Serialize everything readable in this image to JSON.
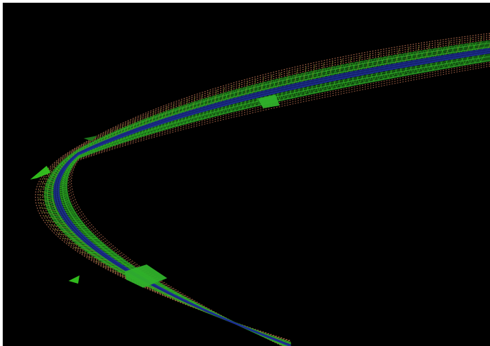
{
  "scene": {
    "background_color": "#000000",
    "frame_color": "#ffffff",
    "subject": "3d-wireframe-road-mesh",
    "colors": {
      "outer_edge": "#b06a4c",
      "inner_edge": "#a86448",
      "mesh_green": "#2fb02a",
      "mesh_bright_green": "#34c41f",
      "mesh_dark_green": "#1d7a1a",
      "centerline_blue": "#1f2f9a",
      "centerline_dark_blue": "#14206b",
      "surface_olive": "#6f7a2a"
    },
    "features": [
      {
        "name": "large-triangle-patch",
        "color": "#2fb02a"
      },
      {
        "name": "left-spike-patch",
        "color": "#34c41f"
      },
      {
        "name": "upper-left-spike",
        "color": "#1d7a1a"
      },
      {
        "name": "upper-right-patch",
        "color": "#2fb02a"
      },
      {
        "name": "lower-left-sliver",
        "color": "#34c41f"
      }
    ]
  }
}
